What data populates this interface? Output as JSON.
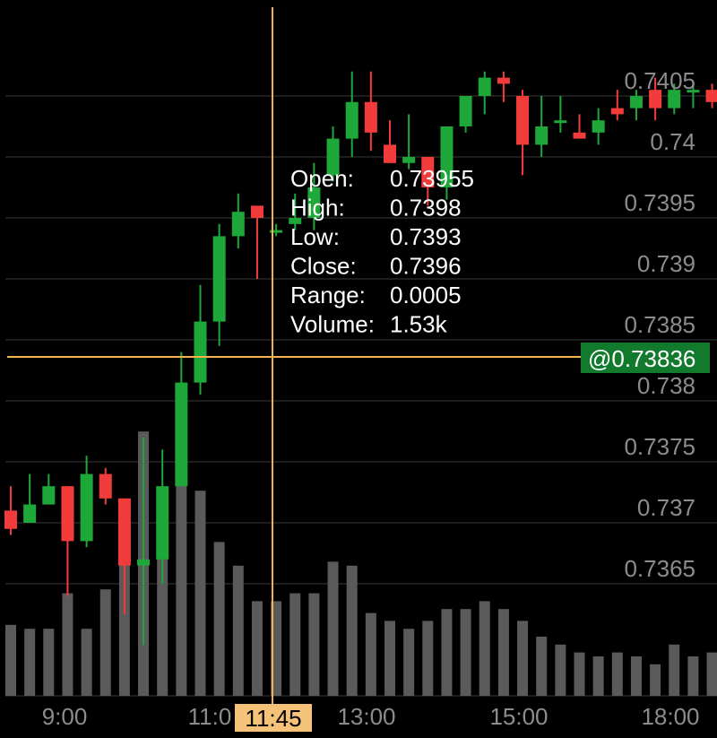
{
  "colors": {
    "up": "#1fa83a",
    "down": "#f23c3c",
    "volume": "#5a5a5a",
    "grid": "#3a3a3a",
    "crosshair": "#f3b24c",
    "price_tag_bg": "#127a2c",
    "time_tag_bg": "#f5c27a"
  },
  "chart_data": {
    "type": "candlestick",
    "ylim": [
      0.73603,
      0.74105
    ],
    "y_ticks": [
      "0.7405",
      "0.74",
      "0.7395",
      "0.739",
      "0.7385",
      "0.738",
      "0.7375",
      "0.737",
      "0.7365"
    ],
    "x_ticks": [
      "9:00",
      "11:0",
      "13:00",
      "15:00",
      "18:00"
    ],
    "grid": true,
    "crosshair": {
      "time": "11:45",
      "price": "@0.73836"
    },
    "tooltip": [
      {
        "label": "Open:",
        "value": "0.73955"
      },
      {
        "label": "High:",
        "value": "0.7398"
      },
      {
        "label": "Low:",
        "value": "0.7393"
      },
      {
        "label": "Close:",
        "value": "0.7396"
      },
      {
        "label": "Range:",
        "value": "0.0005"
      },
      {
        "label": "Volume:",
        "value": "1.53k"
      }
    ],
    "volume_max": 1.0,
    "candles": [
      {
        "o": 0.7371,
        "h": 0.7373,
        "l": 0.7369,
        "c": 0.73695,
        "v": 0.18
      },
      {
        "o": 0.737,
        "h": 0.7374,
        "l": 0.737,
        "c": 0.73715,
        "v": 0.17
      },
      {
        "o": 0.73715,
        "h": 0.7374,
        "l": 0.73715,
        "c": 0.7373,
        "v": 0.17
      },
      {
        "o": 0.7373,
        "h": 0.7373,
        "l": 0.7364,
        "c": 0.73685,
        "v": 0.26
      },
      {
        "o": 0.73685,
        "h": 0.73755,
        "l": 0.7368,
        "c": 0.7374,
        "v": 0.17
      },
      {
        "o": 0.7374,
        "h": 0.73745,
        "l": 0.73715,
        "c": 0.7372,
        "v": 0.27
      },
      {
        "o": 0.7372,
        "h": 0.7372,
        "l": 0.73625,
        "c": 0.73665,
        "v": 0.35
      },
      {
        "o": 0.73665,
        "h": 0.7377,
        "l": 0.736,
        "c": 0.7367,
        "v": 0.67
      },
      {
        "o": 0.7367,
        "h": 0.7376,
        "l": 0.7365,
        "c": 0.7373,
        "v": 0.45
      },
      {
        "o": 0.7373,
        "h": 0.7384,
        "l": 0.7373,
        "c": 0.73815,
        "v": 0.55
      },
      {
        "o": 0.73815,
        "h": 0.73895,
        "l": 0.73805,
        "c": 0.73865,
        "v": 0.52
      },
      {
        "o": 0.73865,
        "h": 0.73945,
        "l": 0.73845,
        "c": 0.73935,
        "v": 0.39
      },
      {
        "o": 0.73935,
        "h": 0.7397,
        "l": 0.73925,
        "c": 0.73955,
        "v": 0.33
      },
      {
        "o": 0.7396,
        "h": 0.7396,
        "l": 0.739,
        "c": 0.7395,
        "v": 0.24
      },
      {
        "o": 0.7394,
        "h": 0.73945,
        "l": 0.73935,
        "c": 0.7394,
        "v": 0.24
      },
      {
        "o": 0.73945,
        "h": 0.7397,
        "l": 0.7394,
        "c": 0.7395,
        "v": 0.26
      },
      {
        "o": 0.7395,
        "h": 0.73995,
        "l": 0.7394,
        "c": 0.73975,
        "v": 0.26
      },
      {
        "o": 0.73985,
        "h": 0.74025,
        "l": 0.7398,
        "c": 0.74015,
        "v": 0.34
      },
      {
        "o": 0.74015,
        "h": 0.7407,
        "l": 0.74,
        "c": 0.74045,
        "v": 0.33
      },
      {
        "o": 0.74045,
        "h": 0.7407,
        "l": 0.74005,
        "c": 0.7402,
        "v": 0.21
      },
      {
        "o": 0.7401,
        "h": 0.7403,
        "l": 0.73995,
        "c": 0.73995,
        "v": 0.19
      },
      {
        "o": 0.73995,
        "h": 0.74035,
        "l": 0.7399,
        "c": 0.74,
        "v": 0.17
      },
      {
        "o": 0.74,
        "h": 0.74,
        "l": 0.7396,
        "c": 0.73975,
        "v": 0.19
      },
      {
        "o": 0.73975,
        "h": 0.7402,
        "l": 0.73965,
        "c": 0.74025,
        "v": 0.22
      },
      {
        "o": 0.74025,
        "h": 0.7405,
        "l": 0.7402,
        "c": 0.7405,
        "v": 0.22
      },
      {
        "o": 0.7405,
        "h": 0.7407,
        "l": 0.74035,
        "c": 0.74065,
        "v": 0.24
      },
      {
        "o": 0.74065,
        "h": 0.7407,
        "l": 0.74045,
        "c": 0.7406,
        "v": 0.22
      },
      {
        "o": 0.7405,
        "h": 0.74055,
        "l": 0.73985,
        "c": 0.7401,
        "v": 0.19
      },
      {
        "o": 0.7401,
        "h": 0.7405,
        "l": 0.74,
        "c": 0.74025,
        "v": 0.15
      },
      {
        "o": 0.7403,
        "h": 0.7405,
        "l": 0.7402,
        "c": 0.7403,
        "v": 0.13
      },
      {
        "o": 0.7402,
        "h": 0.74035,
        "l": 0.74015,
        "c": 0.74015,
        "v": 0.11
      },
      {
        "o": 0.7402,
        "h": 0.7404,
        "l": 0.7401,
        "c": 0.7403,
        "v": 0.1
      },
      {
        "o": 0.7404,
        "h": 0.74055,
        "l": 0.7403,
        "c": 0.74035,
        "v": 0.11
      },
      {
        "o": 0.7404,
        "h": 0.74055,
        "l": 0.7403,
        "c": 0.7405,
        "v": 0.1
      },
      {
        "o": 0.74055,
        "h": 0.74065,
        "l": 0.7403,
        "c": 0.7404,
        "v": 0.08
      },
      {
        "o": 0.7404,
        "h": 0.7406,
        "l": 0.74035,
        "c": 0.74055,
        "v": 0.13
      },
      {
        "o": 0.74055,
        "h": 0.7406,
        "l": 0.7404,
        "c": 0.74055,
        "v": 0.1
      },
      {
        "o": 0.74055,
        "h": 0.7406,
        "l": 0.7404,
        "c": 0.74045,
        "v": 0.11
      },
      {
        "o": 0.74045,
        "h": 0.7408,
        "l": 0.7404,
        "c": 0.74075,
        "v": 0.12
      }
    ]
  }
}
